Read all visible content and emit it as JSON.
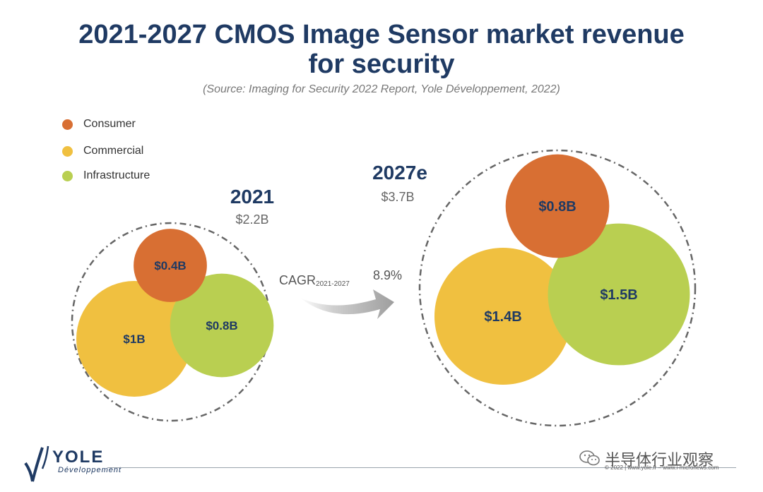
{
  "title_line1": "2021-2027 CMOS Image Sensor market revenue",
  "title_line2": "for security",
  "source": "(Source: Imaging for Security 2022 Report, Yole Développement, 2022)",
  "colors": {
    "consumer": "#d86f33",
    "commercial": "#f0c040",
    "infrastructure": "#b9cf51",
    "navy": "#1f3a63",
    "gray": "#666666"
  },
  "chart_data": {
    "type": "bubble",
    "legend": [
      {
        "name": "Consumer",
        "color": "#d86f33"
      },
      {
        "name": "Commercial",
        "color": "#f0c040"
      },
      {
        "name": "Infrastructure",
        "color": "#b9cf51"
      }
    ],
    "groups": [
      {
        "year": "2021",
        "total": "$2.2B",
        "segments": [
          {
            "name": "Commercial",
            "value": 1.0,
            "label": "$1B"
          },
          {
            "name": "Infrastructure",
            "value": 0.8,
            "label": "$0.8B"
          },
          {
            "name": "Consumer",
            "value": 0.4,
            "label": "$0.4B"
          }
        ]
      },
      {
        "year": "2027e",
        "total": "$3.7B",
        "segments": [
          {
            "name": "Commercial",
            "value": 1.4,
            "label": "$1.4B"
          },
          {
            "name": "Infrastructure",
            "value": 1.5,
            "label": "$1.5B"
          },
          {
            "name": "Consumer",
            "value": 0.8,
            "label": "$0.8B"
          }
        ]
      }
    ],
    "cagr": {
      "label": "CAGR",
      "period": "2021-2027",
      "value": "8.9%"
    }
  },
  "footer": {
    "logo_word": "YOLE",
    "logo_sub": "Développement",
    "watermark": "半导体行业观察",
    "copyright": "© 2022 | www.yole.fr – www.i-micronews.com"
  }
}
